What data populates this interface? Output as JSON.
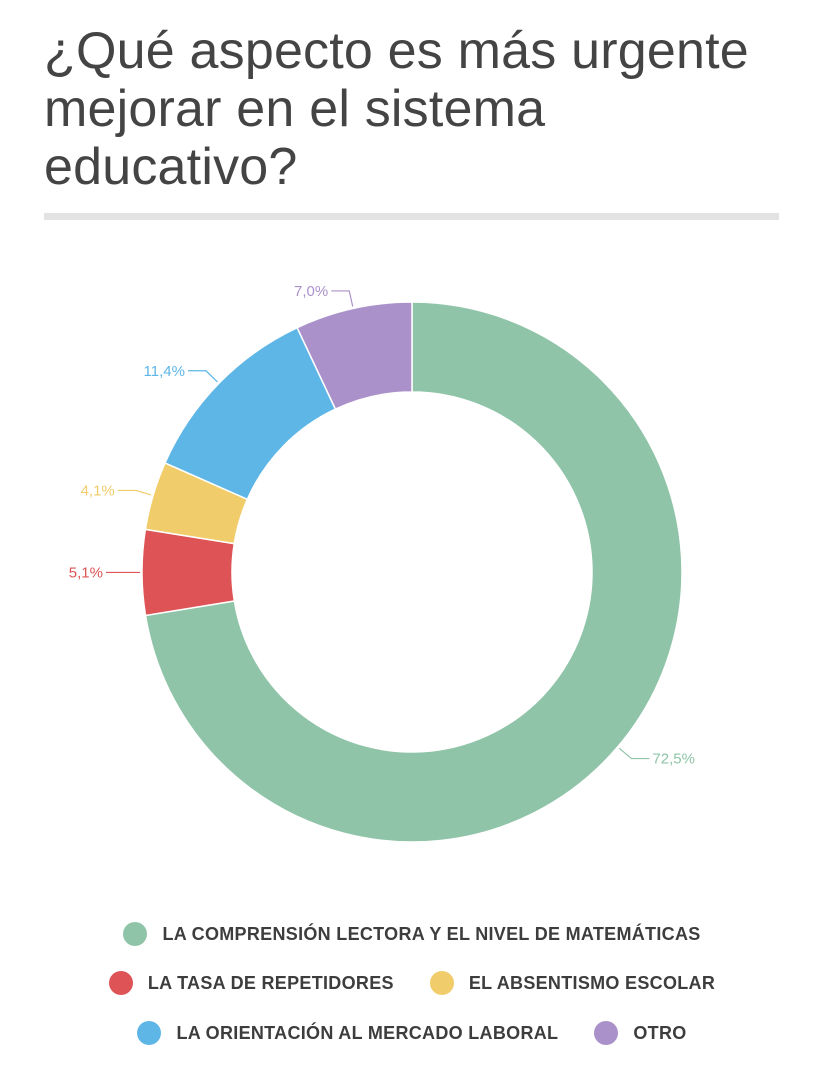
{
  "title": "¿Qué aspecto es más urgente mejorar en el sistema educativo?",
  "chart_data": {
    "type": "pie",
    "donut": true,
    "categories": [
      "LA COMPRENSIÓN LECTORA Y EL NIVEL DE MATEMÁTICAS",
      "LA TASA DE REPETIDORES",
      "EL ABSENTISMO ESCOLAR",
      "LA ORIENTACIÓN AL MERCADO LABORAL",
      "OTRO"
    ],
    "values": [
      72.5,
      5.1,
      4.1,
      11.4,
      7.0
    ],
    "labels": [
      "72,5%",
      "5,1%",
      "4,1%",
      "11,4%",
      "7,0%"
    ],
    "colors": [
      "#8fc4a8",
      "#de5456",
      "#f0cc6a",
      "#5db6e6",
      "#ab91ca"
    ],
    "legend_position": "bottom"
  }
}
